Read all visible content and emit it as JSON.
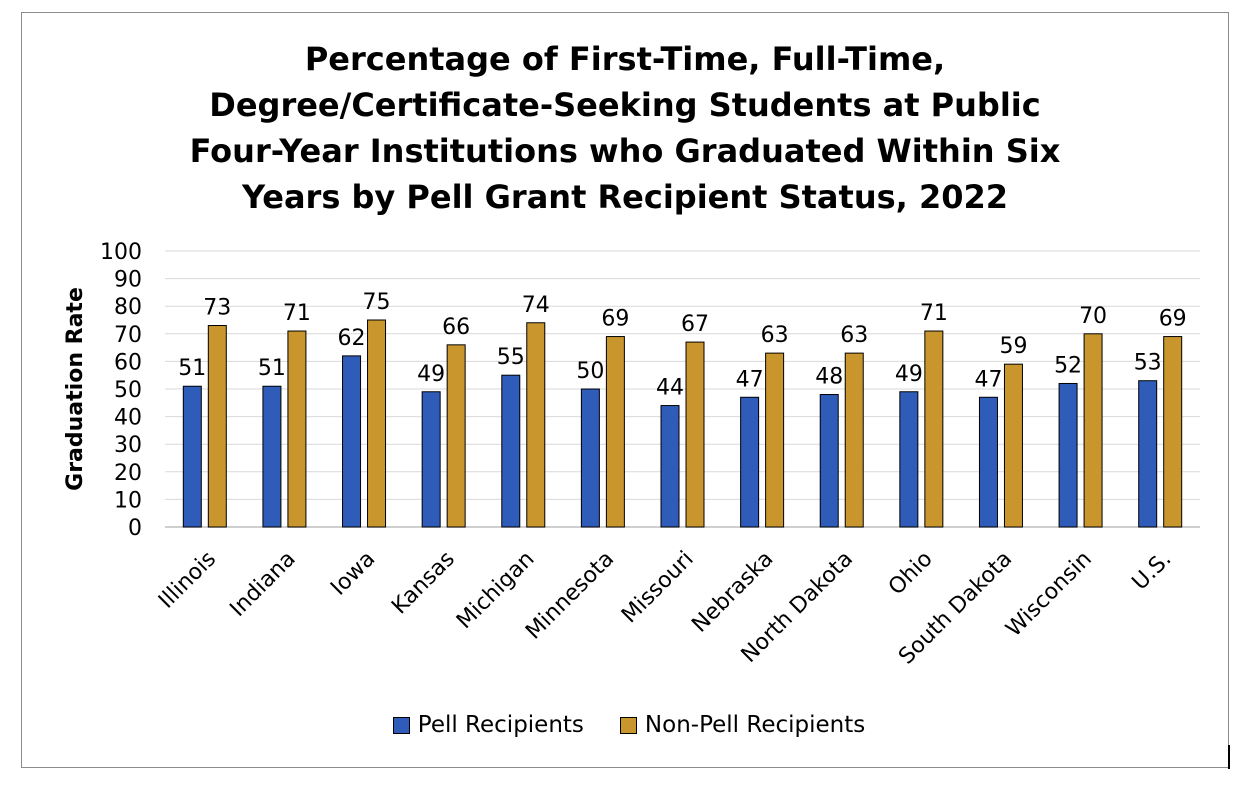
{
  "chart_data": {
    "type": "bar",
    "title_lines": [
      "Percentage of First-Time, Full-Time,",
      "Degree/Certificate-Seeking Students at Public",
      "Four-Year Institutions who Graduated Within Six",
      "Years by Pell Grant Recipient Status, 2022"
    ],
    "xlabel": "",
    "ylabel": "Graduation Rate",
    "ylim": [
      0,
      100
    ],
    "yticks": [
      0,
      10,
      20,
      30,
      40,
      50,
      60,
      70,
      80,
      90,
      100
    ],
    "grid": true,
    "legend_position": "bottom",
    "categories": [
      "Illinois",
      "Indiana",
      "Iowa",
      "Kansas",
      "Michigan",
      "Minnesota",
      "Missouri",
      "Nebraska",
      "North Dakota",
      "Ohio",
      "South Dakota",
      "Wisconsin",
      "U.S."
    ],
    "series": [
      {
        "name": "Pell Recipients",
        "color": "#2e5cb8",
        "values": [
          51,
          51,
          62,
          49,
          55,
          50,
          44,
          47,
          48,
          49,
          47,
          52,
          53
        ]
      },
      {
        "name": "Non-Pell Recipients",
        "color": "#c9962e",
        "values": [
          73,
          71,
          75,
          66,
          74,
          69,
          67,
          63,
          63,
          71,
          59,
          70,
          69
        ]
      }
    ]
  }
}
